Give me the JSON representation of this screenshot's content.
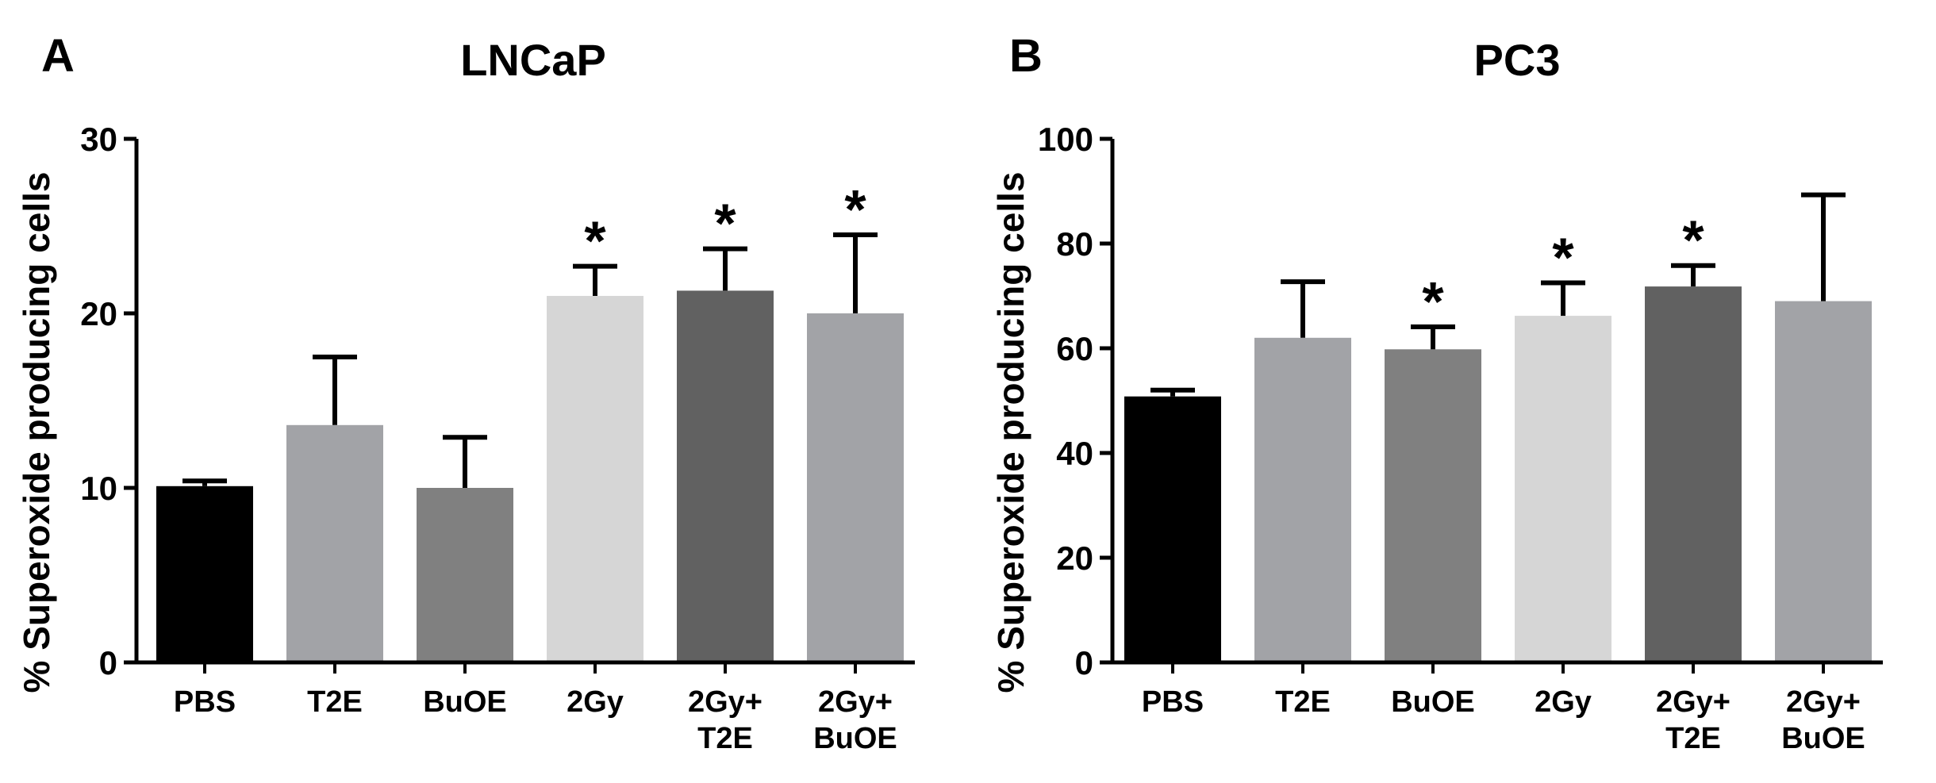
{
  "chart_data": [
    {
      "type": "bar",
      "panel": "A",
      "title": "LNCaP",
      "xlabel": "",
      "ylabel": "% Superoxide producing cells",
      "ylim": [
        0,
        30
      ],
      "yticks": [
        0,
        10,
        20,
        30
      ],
      "categories": [
        [
          "PBS"
        ],
        [
          "T2E"
        ],
        [
          "BuOE"
        ],
        [
          "2Gy"
        ],
        [
          "2Gy+",
          "T2E"
        ],
        [
          "2Gy+",
          "BuOE"
        ]
      ],
      "values": [
        10.1,
        13.6,
        10.0,
        21.0,
        21.3,
        20.0
      ],
      "errors": [
        0.3,
        3.9,
        2.9,
        1.7,
        2.4,
        4.5
      ],
      "significant": [
        false,
        false,
        false,
        true,
        true,
        true
      ],
      "significance_marker": "*",
      "colors": [
        "#000000",
        "#a2a3a7",
        "#808080",
        "#d6d6d6",
        "#616161",
        "#a2a3a7"
      ]
    },
    {
      "type": "bar",
      "panel": "B",
      "title": "PC3",
      "xlabel": "",
      "ylabel": "% Superoxide producing cells",
      "ylim": [
        0,
        100
      ],
      "yticks": [
        0,
        20,
        40,
        60,
        80,
        100
      ],
      "categories": [
        [
          "PBS"
        ],
        [
          "T2E"
        ],
        [
          "BuOE"
        ],
        [
          "2Gy"
        ],
        [
          "2Gy+",
          "T2E"
        ],
        [
          "2Gy+",
          "BuOE"
        ]
      ],
      "values": [
        50.8,
        62.0,
        59.8,
        66.2,
        71.8,
        69.0
      ],
      "errors": [
        1.2,
        10.7,
        4.3,
        6.3,
        4.0,
        20.3
      ],
      "significant": [
        false,
        false,
        true,
        true,
        true,
        false
      ],
      "significance_marker": "*",
      "colors": [
        "#000000",
        "#a2a3a7",
        "#808080",
        "#d6d6d6",
        "#616161",
        "#a2a3a7"
      ]
    }
  ]
}
